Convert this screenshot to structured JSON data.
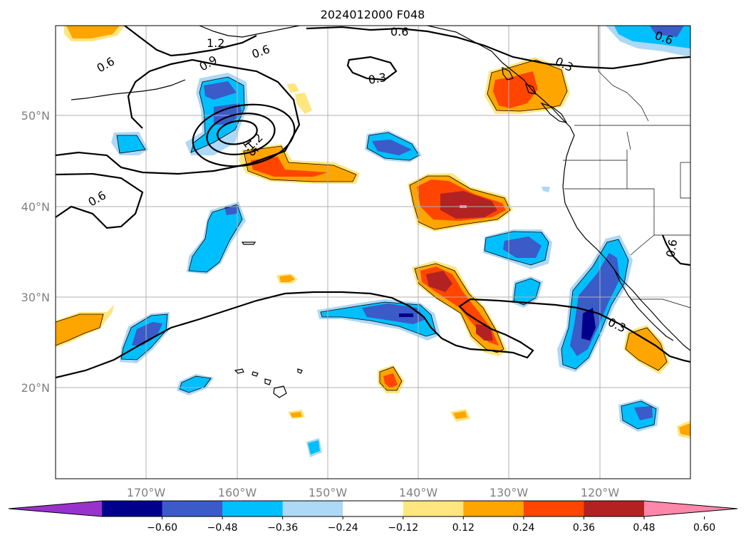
{
  "title": "2024012000 F048",
  "lat_labels": [
    "50°N",
    "40°N",
    "30°N",
    "20°N"
  ],
  "lon_labels": [
    "170°W",
    "160°W",
    "150°W",
    "140°W",
    "130°W",
    "120°W"
  ],
  "colorbar": {
    "tick_labels": [
      "−0.60",
      "−0.48",
      "−0.36",
      "−0.24",
      "−0.12",
      "0.12",
      "0.24",
      "0.36",
      "0.48",
      "0.60"
    ],
    "colors": [
      "#9932cc",
      "#00008b",
      "#3a5bc8",
      "#00bfff",
      "#add8f6",
      "#ffffff",
      "#ffe680",
      "#ffa500",
      "#ff4500",
      "#b22222",
      "#ff88aa"
    ]
  },
  "contour_labels": [
    "0.6",
    "0.6",
    "0.6",
    "0.6",
    "0.6",
    "0.3",
    "0.3",
    "0.3",
    "1.2",
    "0.9",
    "1.5",
    "1.2",
    "0.6"
  ]
}
